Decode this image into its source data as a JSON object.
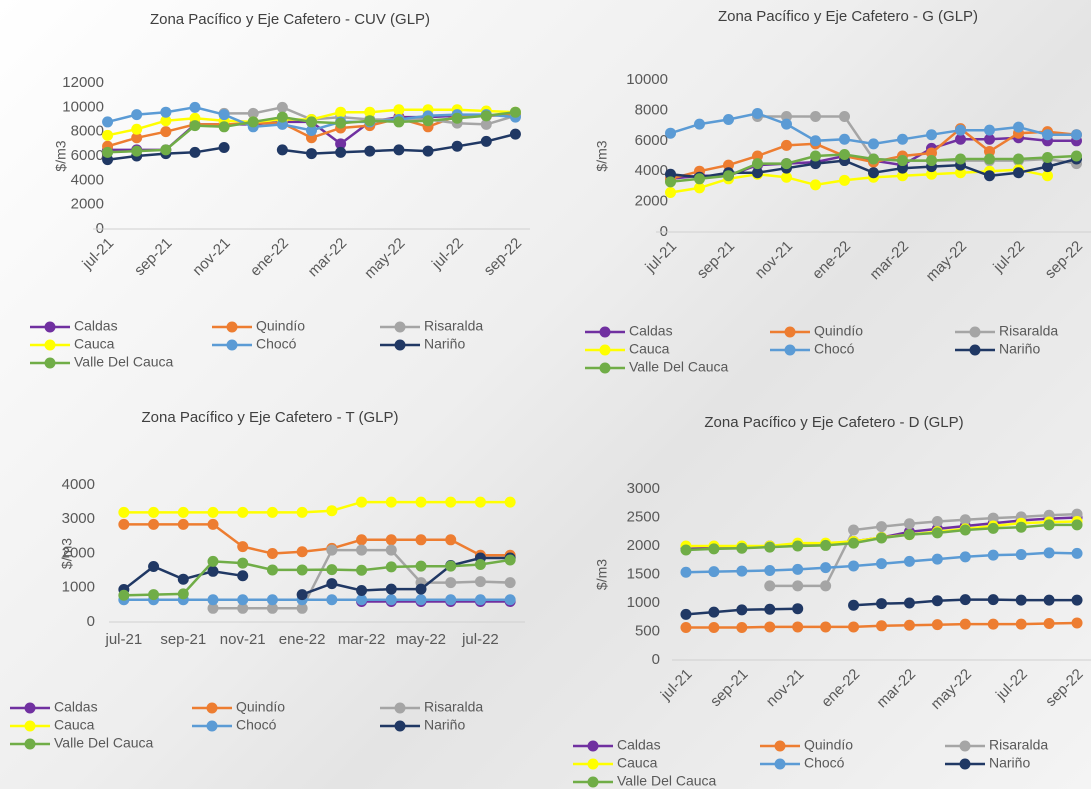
{
  "chart_data": [
    {
      "type": "line",
      "title": "Zona Pacífico y Eje Cafetero - CUV (GLP)",
      "y_label": "$/m3",
      "categories": [
        "jul-21",
        null,
        "sep-21",
        null,
        "nov-21",
        null,
        "ene-22",
        null,
        "mar-22",
        null,
        "may-22",
        null,
        "jul-22",
        null,
        "sep-22"
      ],
      "ylim": [
        0,
        12000
      ],
      "yticks": [
        0,
        2000,
        4000,
        6000,
        8000,
        10000,
        12000
      ],
      "series": [
        {
          "name": "Caldas",
          "color": "#7030a0",
          "values": [
            6500,
            6500,
            6500,
            8600,
            8600,
            8600,
            8800,
            8800,
            7000,
            8800,
            9200,
            9200,
            9300,
            9300,
            9400
          ]
        },
        {
          "name": "Quindío",
          "color": "#ed7d31",
          "values": [
            6800,
            7500,
            8000,
            8600,
            8600,
            8700,
            8700,
            7500,
            8300,
            8500,
            9100,
            8400,
            9300,
            9300,
            9400
          ]
        },
        {
          "name": "Risaralda",
          "color": "#a5a5a5",
          "values": [
            null,
            null,
            null,
            null,
            9500,
            9500,
            10000,
            9000,
            9200,
            9000,
            9000,
            9000,
            8700,
            8600,
            9300
          ]
        },
        {
          "name": "Cauca",
          "color": "#ffff00",
          "values": [
            7700,
            8200,
            8900,
            9100,
            8900,
            8800,
            9000,
            9000,
            9600,
            9600,
            9800,
            9800,
            9800,
            9700,
            9600
          ]
        },
        {
          "name": "Chocó",
          "color": "#5b9bd5",
          "values": [
            8800,
            9400,
            9600,
            10000,
            9400,
            8400,
            8600,
            8100,
            8800,
            8800,
            9000,
            9300,
            9400,
            9400,
            9200
          ]
        },
        {
          "name": "Nariño",
          "color": "#203864",
          "values": [
            5700,
            6000,
            6200,
            6300,
            6700,
            null,
            6500,
            6200,
            6300,
            6400,
            6500,
            6400,
            6800,
            7200,
            7800
          ]
        },
        {
          "name": "Valle Del Cauca",
          "color": "#70ad47",
          "values": [
            6300,
            6400,
            6500,
            8500,
            8400,
            8800,
            9200,
            8800,
            8700,
            8900,
            8800,
            8900,
            9100,
            9300,
            9600
          ]
        }
      ]
    },
    {
      "type": "line",
      "title": "Zona Pacífico y Eje Cafetero - G (GLP)",
      "y_label": "$/m3",
      "categories": [
        "jul-21",
        null,
        "sep-21",
        null,
        "nov-21",
        null,
        "ene-22",
        null,
        "mar-22",
        null,
        "may-22",
        null,
        "jul-22",
        null,
        "sep-22"
      ],
      "ylim": [
        0,
        10000
      ],
      "yticks": [
        0,
        2000,
        4000,
        6000,
        8000,
        10000
      ],
      "series": [
        {
          "name": "Caldas",
          "color": "#7030a0",
          "values": [
            3500,
            3700,
            3700,
            4400,
            4500,
            4600,
            5000,
            4700,
            4400,
            5500,
            6100,
            6100,
            6200,
            6000,
            6000
          ]
        },
        {
          "name": "Quindío",
          "color": "#ed7d31",
          "values": [
            3500,
            4000,
            4400,
            5000,
            5700,
            5800,
            5000,
            4600,
            5000,
            5200,
            6800,
            5300,
            6500,
            6600,
            6400
          ]
        },
        {
          "name": "Risaralda",
          "color": "#a5a5a5",
          "values": [
            null,
            null,
            null,
            7600,
            7600,
            7600,
            7600,
            4800,
            4700,
            4700,
            4700,
            4700,
            4700,
            4800,
            4500
          ]
        },
        {
          "name": "Cauca",
          "color": "#ffff00",
          "values": [
            2600,
            2900,
            3500,
            3800,
            3600,
            3100,
            3400,
            3600,
            3700,
            3800,
            3900,
            4000,
            4100,
            3700,
            null
          ]
        },
        {
          "name": "Chocó",
          "color": "#5b9bd5",
          "values": [
            6500,
            7100,
            7400,
            7800,
            7100,
            6000,
            6100,
            5800,
            6100,
            6400,
            6700,
            6700,
            6900,
            6400,
            6400
          ]
        },
        {
          "name": "Nariño",
          "color": "#203864",
          "values": [
            3800,
            3600,
            3900,
            3900,
            4200,
            4500,
            4700,
            3900,
            4200,
            4300,
            4400,
            3700,
            3900,
            4300,
            4800
          ]
        },
        {
          "name": "Valle Del Cauca",
          "color": "#70ad47",
          "values": [
            3300,
            3500,
            3700,
            4500,
            4500,
            5000,
            5100,
            4800,
            4700,
            4700,
            4800,
            4800,
            4800,
            4900,
            5000
          ]
        }
      ]
    },
    {
      "type": "line",
      "title": "Zona Pacífico y Eje Cafetero - T (GLP)",
      "y_label": "$/m3",
      "categories": [
        "jul-21",
        null,
        "sep-21",
        null,
        "nov-21",
        null,
        "ene-22",
        null,
        "mar-22",
        null,
        "may-22",
        null,
        "jul-22",
        null
      ],
      "ylim": [
        0,
        4000
      ],
      "yticks": [
        0,
        1000,
        2000,
        3000,
        4000
      ],
      "series": [
        {
          "name": "Caldas",
          "color": "#7030a0",
          "values": [
            null,
            null,
            null,
            null,
            null,
            null,
            null,
            null,
            600,
            600,
            600,
            600,
            600,
            600
          ]
        },
        {
          "name": "Quindío",
          "color": "#ed7d31",
          "values": [
            2850,
            2850,
            2850,
            2850,
            2200,
            2000,
            2050,
            2150,
            2400,
            2400,
            2400,
            2400,
            1950,
            1950
          ]
        },
        {
          "name": "Risaralda",
          "color": "#a5a5a5",
          "values": [
            null,
            null,
            null,
            400,
            400,
            400,
            400,
            2100,
            2100,
            2100,
            1150,
            1150,
            1180,
            1150
          ]
        },
        {
          "name": "Cauca",
          "color": "#ffff00",
          "values": [
            3200,
            3200,
            3200,
            3200,
            3200,
            3200,
            3200,
            3250,
            3500,
            3500,
            3500,
            3500,
            3500,
            3500
          ]
        },
        {
          "name": "Chocó",
          "color": "#5b9bd5",
          "values": [
            650,
            650,
            650,
            650,
            650,
            650,
            650,
            650,
            650,
            650,
            650,
            650,
            650,
            650
          ]
        },
        {
          "name": "Nariño",
          "color": "#203864",
          "values": [
            950,
            1620,
            1250,
            1480,
            1350,
            null,
            800,
            1120,
            920,
            960,
            960,
            1650,
            1870,
            1870
          ]
        },
        {
          "name": "Valle Del Cauca",
          "color": "#70ad47",
          "values": [
            780,
            800,
            820,
            1770,
            1720,
            1520,
            1520,
            1530,
            1510,
            1610,
            1630,
            1630,
            1680,
            1810
          ]
        }
      ]
    },
    {
      "type": "line",
      "title": "Zona Pacífico y Eje Cafetero - D (GLP)",
      "y_label": "$/m3",
      "categories": [
        "jul-21",
        null,
        "sep-21",
        null,
        "nov-21",
        null,
        "ene-22",
        null,
        "mar-22",
        null,
        "may-22",
        null,
        "jul-22",
        null,
        "sep-22"
      ],
      "ylim": [
        0,
        3000
      ],
      "yticks": [
        0,
        500,
        1000,
        1500,
        2000,
        2500,
        3000
      ],
      "series": [
        {
          "name": "Caldas",
          "color": "#7030a0",
          "values": [
            1950,
            1970,
            1980,
            2000,
            2020,
            2040,
            2080,
            2150,
            2250,
            2300,
            2350,
            2400,
            2450,
            2480,
            2500
          ]
        },
        {
          "name": "Quindío",
          "color": "#ed7d31",
          "values": [
            570,
            570,
            570,
            580,
            580,
            580,
            580,
            600,
            610,
            620,
            630,
            630,
            630,
            640,
            650
          ]
        },
        {
          "name": "Risaralda",
          "color": "#a5a5a5",
          "values": [
            null,
            null,
            null,
            1300,
            1300,
            1300,
            2280,
            2340,
            2390,
            2430,
            2460,
            2490,
            2510,
            2540,
            2560
          ]
        },
        {
          "name": "Cauca",
          "color": "#ffff00",
          "values": [
            2000,
            2000,
            2000,
            2000,
            2050,
            2050,
            2080,
            2150,
            2200,
            2250,
            2300,
            2350,
            2400,
            2420,
            2430
          ]
        },
        {
          "name": "Chocó",
          "color": "#5b9bd5",
          "values": [
            1540,
            1550,
            1560,
            1570,
            1590,
            1620,
            1650,
            1690,
            1730,
            1770,
            1810,
            1840,
            1850,
            1880,
            1870
          ]
        },
        {
          "name": "Nariño",
          "color": "#203864",
          "values": [
            800,
            840,
            880,
            890,
            900,
            null,
            960,
            990,
            1000,
            1040,
            1060,
            1060,
            1050,
            1050,
            1050
          ]
        },
        {
          "name": "Valle Del Cauca",
          "color": "#70ad47",
          "values": [
            1930,
            1950,
            1960,
            1980,
            2000,
            2010,
            2050,
            2140,
            2200,
            2230,
            2280,
            2310,
            2330,
            2370,
            2370
          ]
        }
      ]
    }
  ]
}
